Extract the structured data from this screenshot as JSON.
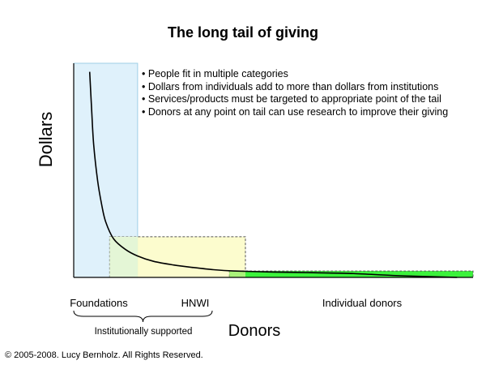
{
  "chart_data": {
    "type": "area",
    "title": "The long tail of giving",
    "xlabel": "Donors",
    "ylabel": "Dollars",
    "legend": "none",
    "grid": false,
    "notes": [
      "People fit in multiple categories",
      "Dollars from individuals add to more than dollars from institutions",
      "Services/products must be targeted to appropriate point of the tail",
      "Donors at any point on tail can use research to improve their giving"
    ],
    "categories": [
      "Foundations",
      "HNWI",
      "Individual donors"
    ],
    "segments": [
      {
        "category": "Foundations",
        "x_range": [
          0,
          0.16
        ],
        "height": 1.0,
        "color": "#dff1fb",
        "border": "#9fcfe6"
      },
      {
        "category": "HNWI",
        "x_range": [
          0.09,
          0.43
        ],
        "height": 0.19,
        "color": "#fbfbc6",
        "border": "#555555"
      },
      {
        "category": "Individual donors",
        "x_range": [
          0.39,
          1.0
        ],
        "height": 0.03,
        "color": "#3cf23c",
        "border": "#555555"
      }
    ],
    "curve": {
      "x": [
        0.04,
        0.045,
        0.05,
        0.06,
        0.07,
        0.08,
        0.1,
        0.13,
        0.16,
        0.2,
        0.25,
        0.3,
        0.35,
        0.4,
        0.5,
        0.6,
        0.7,
        0.8,
        0.9,
        0.96
      ],
      "y": [
        0.96,
        0.78,
        0.62,
        0.45,
        0.34,
        0.26,
        0.18,
        0.13,
        0.1,
        0.075,
        0.058,
        0.046,
        0.036,
        0.03,
        0.025,
        0.022,
        0.018,
        0.009,
        0.003,
        0.0
      ]
    },
    "bracket": {
      "label": "Institutionally supported",
      "spans": [
        "Foundations",
        "HNWI"
      ]
    },
    "copyright": "© 2005-2008. Lucy Bernholz. All Rights Reserved."
  }
}
